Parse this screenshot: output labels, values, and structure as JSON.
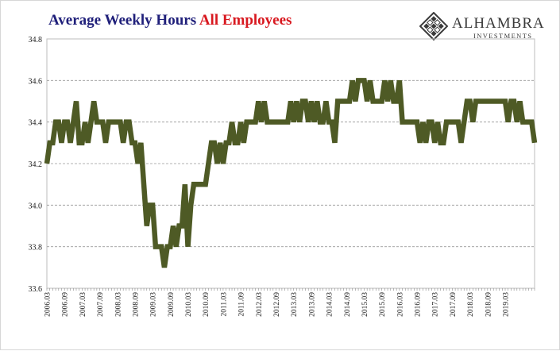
{
  "header": {
    "title_part1": "Average Weekly Hours",
    "title_part2": "All Employees",
    "title_part1_color": "#1f1f7a",
    "title_part2_color": "#d8181f"
  },
  "logo": {
    "name": "ALHAMBRA",
    "subtitle": "INVESTMENTS",
    "icon": "diamond-lattice-icon"
  },
  "chart_data": {
    "type": "line",
    "title": "Average Weekly Hours All Employees",
    "xlabel": "",
    "ylabel": "",
    "ylim": [
      33.6,
      34.8
    ],
    "y_ticks": [
      "33.6",
      "33.8",
      "34.0",
      "34.2",
      "34.4",
      "34.6",
      "34.8"
    ],
    "x_ticks": [
      "2006.03",
      "2006.09",
      "2007.03",
      "2007.09",
      "2008.03",
      "2008.09",
      "2009.03",
      "2009.09",
      "2010.03",
      "2010.09",
      "2011.03",
      "2011.09",
      "2012.03",
      "2012.09",
      "2013.03",
      "2013.09",
      "2014.03",
      "2014.09",
      "2015.03",
      "2015.09",
      "2016.03",
      "2016.09",
      "2017.03",
      "2017.09",
      "2018.03",
      "2018.09",
      "2019.03"
    ],
    "grid": "horizontal dashed",
    "legend": "none",
    "line_color": "#4e5a25",
    "start_period": "2006.03",
    "frequency": "monthly",
    "series": [
      {
        "values": [
          34.2,
          34.3,
          34.3,
          34.4,
          34.4,
          34.3,
          34.4,
          34.4,
          34.3,
          34.4,
          34.5,
          34.3,
          34.3,
          34.4,
          34.3,
          34.4,
          34.5,
          34.4,
          34.4,
          34.4,
          34.3,
          34.4,
          34.4,
          34.4,
          34.4,
          34.4,
          34.3,
          34.4,
          34.4,
          34.3,
          34.3,
          34.2,
          34.3,
          34.1,
          33.9,
          34.0,
          34.0,
          33.8,
          33.8,
          33.8,
          33.7,
          33.8,
          33.8,
          33.9,
          33.8,
          33.9,
          33.9,
          34.1,
          33.8,
          34.0,
          34.1,
          34.1,
          34.1,
          34.1,
          34.1,
          34.2,
          34.3,
          34.3,
          34.2,
          34.3,
          34.2,
          34.3,
          34.3,
          34.4,
          34.3,
          34.3,
          34.4,
          34.3,
          34.4,
          34.4,
          34.4,
          34.4,
          34.5,
          34.4,
          34.5,
          34.4,
          34.4,
          34.4,
          34.4,
          34.4,
          34.4,
          34.4,
          34.4,
          34.5,
          34.4,
          34.5,
          34.4,
          34.5,
          34.5,
          34.4,
          34.5,
          34.4,
          34.5,
          34.4,
          34.4,
          34.5,
          34.4,
          34.4,
          34.3,
          34.5,
          34.5,
          34.5,
          34.5,
          34.5,
          34.6,
          34.5,
          34.6,
          34.6,
          34.6,
          34.5,
          34.6,
          34.5,
          34.5,
          34.5,
          34.5,
          34.6,
          34.5,
          34.6,
          34.5,
          34.5,
          34.6,
          34.4,
          34.4,
          34.4,
          34.4,
          34.4,
          34.4,
          34.3,
          34.4,
          34.3,
          34.4,
          34.4,
          34.3,
          34.4,
          34.3,
          34.3,
          34.4,
          34.4,
          34.4,
          34.4,
          34.4,
          34.3,
          34.4,
          34.5,
          34.5,
          34.4,
          34.5,
          34.5,
          34.5,
          34.5,
          34.5,
          34.5,
          34.5,
          34.5,
          34.5,
          34.5,
          34.5,
          34.4,
          34.5,
          34.5,
          34.4,
          34.5,
          34.4,
          34.4,
          34.4,
          34.4,
          34.3
        ]
      }
    ]
  }
}
